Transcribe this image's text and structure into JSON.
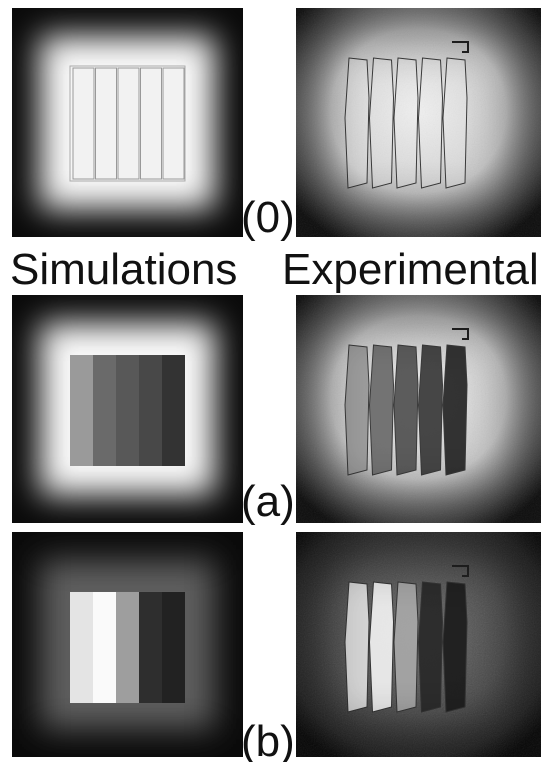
{
  "figure": {
    "column_titles": [
      "Simulations",
      "Experimental"
    ],
    "panels": [
      {
        "label": "(0)"
      },
      {
        "label": "(a)"
      },
      {
        "label": "(b)"
      }
    ]
  }
}
